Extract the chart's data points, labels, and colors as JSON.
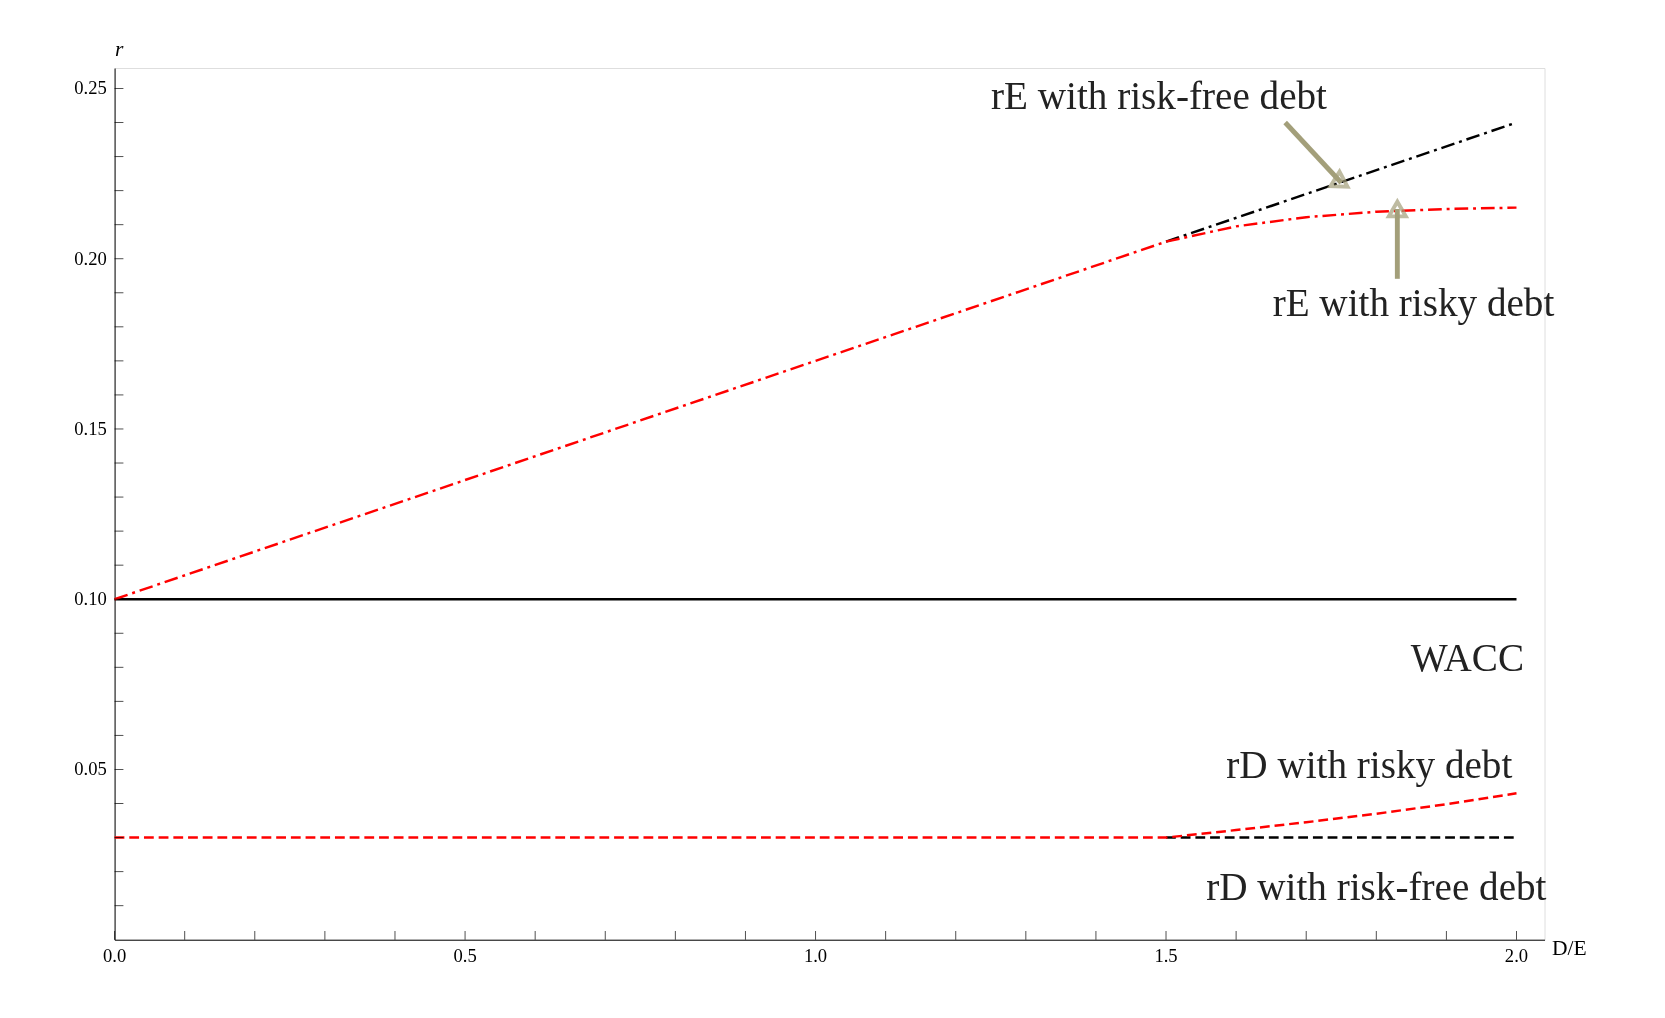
{
  "chart_data": {
    "type": "line",
    "xlabel": "D/E",
    "ylabel": "r",
    "xlim": [
      0,
      2.04
    ],
    "ylim": [
      0,
      0.256
    ],
    "xticks": [
      {
        "value": 0,
        "label": "0.0"
      },
      {
        "value": 0.1,
        "label": null
      },
      {
        "value": 0.2,
        "label": null
      },
      {
        "value": 0.3,
        "label": null
      },
      {
        "value": 0.4,
        "label": null
      },
      {
        "value": 0.5,
        "label": "0.5"
      },
      {
        "value": 0.6,
        "label": null
      },
      {
        "value": 0.7,
        "label": null
      },
      {
        "value": 0.8,
        "label": null
      },
      {
        "value": 0.9,
        "label": null
      },
      {
        "value": 1,
        "label": "1.0"
      },
      {
        "value": 1.1,
        "label": null
      },
      {
        "value": 1.2,
        "label": null
      },
      {
        "value": 1.3,
        "label": null
      },
      {
        "value": 1.4,
        "label": null
      },
      {
        "value": 1.5,
        "label": "1.5"
      },
      {
        "value": 1.6,
        "label": null
      },
      {
        "value": 1.7,
        "label": null
      },
      {
        "value": 1.8,
        "label": null
      },
      {
        "value": 1.9,
        "label": null
      },
      {
        "value": 2,
        "label": "2.0"
      }
    ],
    "yticks": [
      {
        "value": 0.01,
        "label": null
      },
      {
        "value": 0.02,
        "label": null
      },
      {
        "value": 0.03,
        "label": null
      },
      {
        "value": 0.04,
        "label": null
      },
      {
        "value": 0.05,
        "label": "0.05"
      },
      {
        "value": 0.06,
        "label": null
      },
      {
        "value": 0.07,
        "label": null
      },
      {
        "value": 0.08,
        "label": null
      },
      {
        "value": 0.09,
        "label": null
      },
      {
        "value": 0.1,
        "label": "0.10"
      },
      {
        "value": 0.11,
        "label": null
      },
      {
        "value": 0.12,
        "label": null
      },
      {
        "value": 0.13,
        "label": null
      },
      {
        "value": 0.14,
        "label": null
      },
      {
        "value": 0.15,
        "label": "0.15"
      },
      {
        "value": 0.16,
        "label": null
      },
      {
        "value": 0.17,
        "label": null
      },
      {
        "value": 0.18,
        "label": null
      },
      {
        "value": 0.19,
        "label": null
      },
      {
        "value": 0.2,
        "label": "0.20"
      },
      {
        "value": 0.21,
        "label": null
      },
      {
        "value": 0.22,
        "label": null
      },
      {
        "value": 0.23,
        "label": null
      },
      {
        "value": 0.24,
        "label": null
      },
      {
        "value": 0.25,
        "label": "0.25"
      }
    ],
    "grid": false,
    "series": [
      {
        "color": "#000000",
        "line_style": "solid",
        "x": [
          0,
          2
        ],
        "values": [
          0.1,
          0.1
        ]
      },
      {
        "color": "#000000",
        "line_style": "dashdot",
        "x": [
          1.5,
          2
        ],
        "values": [
          0.205,
          0.24
        ]
      },
      {
        "color": "#ff0000",
        "line_style": "dashdot",
        "x": [
          0,
          1.5,
          1.6,
          1.7,
          1.8,
          1.9,
          2.0
        ],
        "values": [
          0.1,
          0.205,
          0.2095,
          0.2122,
          0.2138,
          0.2146,
          0.215
        ]
      },
      {
        "color": "#000000",
        "line_style": "dashed",
        "x": [
          1.5,
          2
        ],
        "values": [
          0.03,
          0.03
        ]
      },
      {
        "color": "#ff0000",
        "line_style": "dashed",
        "x": [
          0,
          1.5,
          1.6,
          1.7,
          1.8,
          1.9,
          2.0
        ],
        "values": [
          0.03,
          0.03,
          0.0322,
          0.0345,
          0.037,
          0.0398,
          0.043
        ]
      }
    ],
    "annotations": [
      {
        "text": "rE with risk-free debt",
        "x": 1.75,
        "y": 0.2223
      },
      {
        "text": "rE with risky debt",
        "x": 1.83,
        "y": 0.2146
      },
      {
        "text": "WACC",
        "x": 1.93,
        "y": 0.1
      },
      {
        "text": "rD with risky debt",
        "x": 1.75,
        "y": 0.036
      },
      {
        "text": "rD with risk-free debt",
        "x": 1.8,
        "y": 0.03
      }
    ]
  }
}
